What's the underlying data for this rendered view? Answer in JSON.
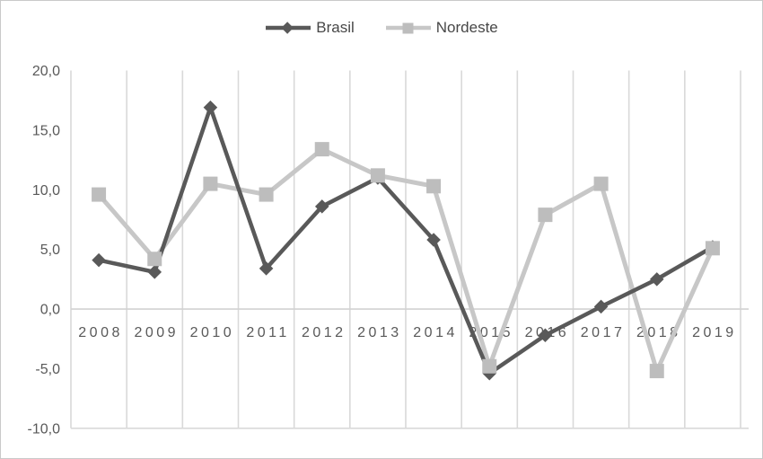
{
  "chart_data": {
    "type": "line",
    "title": "",
    "x": [
      "2008",
      "2009",
      "2010",
      "2011",
      "2012",
      "2013",
      "2014",
      "2015",
      "2016",
      "2017",
      "2018",
      "2019"
    ],
    "series": [
      {
        "name": "Brasil",
        "marker": "diamond",
        "color": "#595959",
        "line_color": "#595959",
        "values": [
          4.1,
          3.1,
          16.9,
          3.4,
          8.6,
          11.0,
          5.8,
          -5.4,
          -2.2,
          0.2,
          2.5,
          5.2
        ]
      },
      {
        "name": "Nordeste",
        "marker": "square",
        "color": "#bdbdbd",
        "line_color": "#c7c7c7",
        "values": [
          9.6,
          4.2,
          10.5,
          9.6,
          13.4,
          11.2,
          10.3,
          -4.8,
          7.9,
          10.5,
          -5.2,
          5.1
        ]
      }
    ],
    "ylim": [
      -10,
      20
    ],
    "ytick_step": 5,
    "ytick_labels": [
      "20,0",
      "15,0",
      "10,0",
      "5,0",
      "0,0",
      "-5,0",
      "-10,0"
    ],
    "xlabel": "",
    "ylabel": "",
    "legend_position": "top-center",
    "grid": "vertical-only",
    "colors": {
      "gridline": "#d9d9d9",
      "axis_line": "#d2d2d2",
      "tick_label": "#595959",
      "legend_text": "#474747",
      "background": "#ffffff",
      "border": "#c9c9c9"
    }
  }
}
